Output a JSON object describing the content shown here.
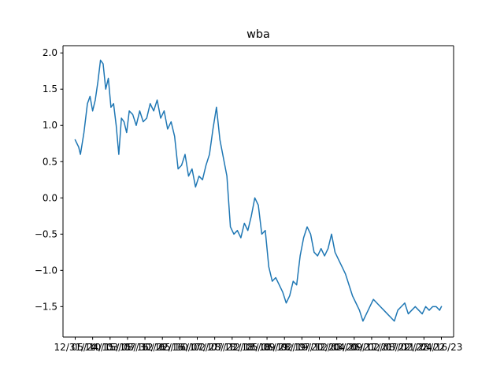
{
  "chart_data": {
    "type": "line",
    "title": "wba",
    "xlabel": "",
    "ylabel": "",
    "grid": false,
    "legend": "none",
    "line_color": "#1f77b4",
    "xlim": [
      -0.7,
      21.7
    ],
    "ylim": [
      -1.92,
      2.1
    ],
    "x_tick_labels": [
      "12/31/14",
      "05/24/15",
      "10/15/15",
      "03/08/16",
      "07/30/16",
      "12/22/16",
      "05/16/17",
      "10/07/17",
      "02/28/18",
      "07/22/18",
      "12/13/18",
      "05/06/19",
      "09/28/19",
      "02/19/20",
      "07/12/20",
      "12/03/20",
      "04/26/21",
      "09/17/21",
      "02/08/22",
      "07/02/22",
      "11/23/22",
      "04/16/23"
    ],
    "y_ticks": [
      {
        "value": 2.0,
        "label": "2.0"
      },
      {
        "value": 1.5,
        "label": "1.5"
      },
      {
        "value": 1.0,
        "label": "1.0"
      },
      {
        "value": 0.5,
        "label": "0.5"
      },
      {
        "value": 0.0,
        "label": "0.0"
      },
      {
        "value": -0.5,
        "label": "−0.5"
      },
      {
        "value": -1.0,
        "label": "−1.0"
      },
      {
        "value": -1.5,
        "label": "−1.5"
      }
    ],
    "series": [
      {
        "x": [
          0,
          0.1,
          0.2,
          0.3,
          0.5,
          0.7,
          0.85,
          1.0,
          1.15,
          1.3,
          1.45,
          1.6,
          1.75,
          1.9,
          2.05,
          2.2,
          2.35,
          2.5,
          2.65,
          2.8,
          2.95,
          3.1,
          3.3,
          3.5,
          3.7,
          3.9,
          4.1,
          4.3,
          4.5,
          4.7,
          4.9,
          5.1,
          5.3,
          5.5,
          5.7,
          5.9,
          6.1,
          6.3,
          6.5,
          6.7,
          6.9,
          7.1,
          7.3,
          7.5,
          7.7,
          7.9,
          8.1,
          8.3,
          8.5,
          8.7,
          8.9,
          9.1,
          9.3,
          9.5,
          9.7,
          9.9,
          10.1,
          10.3,
          10.5,
          10.7,
          10.9,
          11.1,
          11.3,
          11.5,
          11.7,
          11.9,
          12.1,
          12.3,
          12.5,
          12.7,
          12.9,
          13.1,
          13.3,
          13.5,
          13.7,
          13.9,
          14.1,
          14.3,
          14.5,
          14.7,
          14.9,
          15.1,
          15.3,
          15.5,
          15.7,
          15.9,
          16.1,
          16.3,
          16.5,
          16.7,
          16.9,
          17.1,
          17.3,
          17.5,
          17.7,
          17.9,
          18.1,
          18.3,
          18.5,
          18.7,
          18.9,
          19.1,
          19.3,
          19.5,
          19.7,
          19.9,
          20.1,
          20.3,
          20.5,
          20.7,
          20.9,
          21.0
        ],
        "y": [
          0.8,
          0.75,
          0.7,
          0.6,
          0.9,
          1.3,
          1.4,
          1.2,
          1.35,
          1.6,
          1.9,
          1.85,
          1.5,
          1.65,
          1.25,
          1.3,
          1.0,
          0.6,
          1.1,
          1.05,
          0.9,
          1.2,
          1.15,
          1.0,
          1.2,
          1.05,
          1.1,
          1.3,
          1.2,
          1.35,
          1.1,
          1.2,
          0.95,
          1.05,
          0.85,
          0.4,
          0.45,
          0.6,
          0.3,
          0.4,
          0.15,
          0.3,
          0.25,
          0.45,
          0.6,
          0.95,
          1.25,
          0.8,
          0.55,
          0.3,
          -0.4,
          -0.5,
          -0.45,
          -0.55,
          -0.35,
          -0.45,
          -0.25,
          0.0,
          -0.1,
          -0.5,
          -0.45,
          -0.95,
          -1.15,
          -1.1,
          -1.2,
          -1.3,
          -1.45,
          -1.35,
          -1.15,
          -1.2,
          -0.8,
          -0.55,
          -0.4,
          -0.5,
          -0.75,
          -0.8,
          -0.7,
          -0.8,
          -0.7,
          -0.5,
          -0.75,
          -0.85,
          -0.95,
          -1.05,
          -1.2,
          -1.35,
          -1.45,
          -1.55,
          -1.7,
          -1.6,
          -1.5,
          -1.4,
          -1.45,
          -1.5,
          -1.55,
          -1.6,
          -1.65,
          -1.7,
          -1.55,
          -1.5,
          -1.45,
          -1.6,
          -1.55,
          -1.5,
          -1.55,
          -1.6,
          -1.5,
          -1.55,
          -1.5,
          -1.5,
          -1.55,
          -1.5
        ]
      }
    ]
  }
}
